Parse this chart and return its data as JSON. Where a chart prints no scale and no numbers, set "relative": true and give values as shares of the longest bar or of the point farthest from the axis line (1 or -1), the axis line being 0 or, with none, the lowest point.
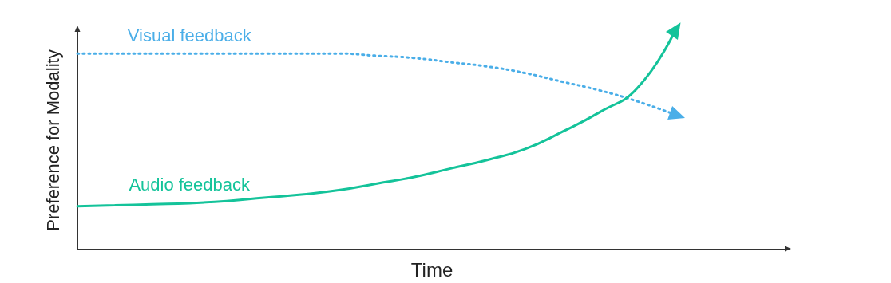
{
  "chart_data": {
    "type": "line",
    "relative": true,
    "xlabel": "Time",
    "ylabel": "Preference for Modality",
    "categories": [
      null,
      null,
      null,
      null,
      null,
      null,
      null,
      null,
      null,
      null,
      null,
      null,
      null,
      null,
      null,
      null,
      null,
      null,
      null,
      null
    ],
    "series": [
      {
        "name": "Visual feedback",
        "color": "#4aaee8",
        "line_style": "dotted",
        "values": [
          0.9,
          0.9,
          0.9,
          0.9,
          0.9,
          0.9,
          0.9,
          0.9,
          0.89,
          0.88,
          0.86,
          0.84,
          0.81,
          0.77,
          0.73,
          0.68,
          0.62,
          null,
          null,
          null
        ]
      },
      {
        "name": "Audio feedback",
        "color": "#14c39a",
        "line_style": "solid",
        "values": [
          0.196,
          0.2,
          0.205,
          0.21,
          0.22,
          0.235,
          0.25,
          0.27,
          0.3,
          0.33,
          0.37,
          0.41,
          0.46,
          0.54,
          0.63,
          0.74,
          1.0,
          null,
          null,
          null
        ]
      }
    ],
    "legend": false,
    "grid": false,
    "tick_labels": false,
    "marker": "none"
  }
}
